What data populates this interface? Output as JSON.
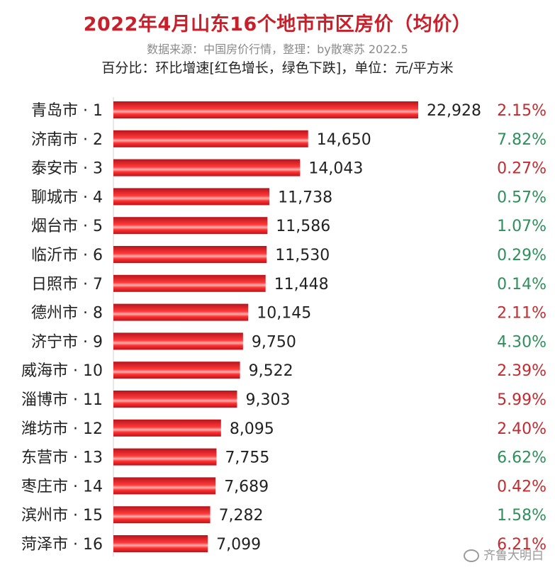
{
  "title": "2022年4月山东16个地市市区房价（均价）",
  "subtitle1": "数据来源：中国房价行情，整理：by散寒苏 2022.5",
  "subtitle2": "百分比：环比增速[红色增长，绿色下跌]，单位：元/平方米",
  "watermark": "齐鲁大明白",
  "colors": {
    "bar": "#e8202a",
    "up": "#c22b30",
    "down": "#2f8f5b"
  },
  "chart_data": {
    "type": "bar",
    "orientation": "horizontal",
    "categories": [
      "青岛市 · 1",
      "济南市 · 2",
      "泰安市 · 3",
      "聊城市 · 4",
      "烟台市 · 5",
      "临沂市 · 6",
      "日照市 · 7",
      "德州市 · 8",
      "济宁市 · 9",
      "威海市 · 10",
      "淄博市 · 11",
      "潍坊市 · 12",
      "东营市 · 13",
      "枣庄市 · 14",
      "滨州市 · 15",
      "菏泽市 · 16"
    ],
    "values": [
      22928,
      14650,
      14043,
      11738,
      11586,
      11530,
      11448,
      10145,
      9750,
      9522,
      9303,
      8095,
      7755,
      7689,
      7282,
      7099
    ],
    "value_labels": [
      "22,928",
      "14,650",
      "14,043",
      "11,738",
      "11,586",
      "11,530",
      "11,448",
      "10,145",
      "9,750",
      "9,522",
      "9,303",
      "8,095",
      "7,755",
      "7,689",
      "7,282",
      "7,099"
    ],
    "change_labels": [
      "2.15%",
      "7.82%",
      "0.27%",
      "0.57%",
      "1.07%",
      "0.29%",
      "0.14%",
      "2.11%",
      "4.30%",
      "2.39%",
      "5.99%",
      "2.40%",
      "6.62%",
      "0.42%",
      "1.58%",
      "6.21%"
    ],
    "change_direction": [
      "up",
      "down",
      "up",
      "down",
      "down",
      "down",
      "down",
      "up",
      "down",
      "up",
      "up",
      "up",
      "down",
      "up",
      "down",
      "up"
    ],
    "xlim": [
      0,
      22928
    ],
    "grid": false
  }
}
